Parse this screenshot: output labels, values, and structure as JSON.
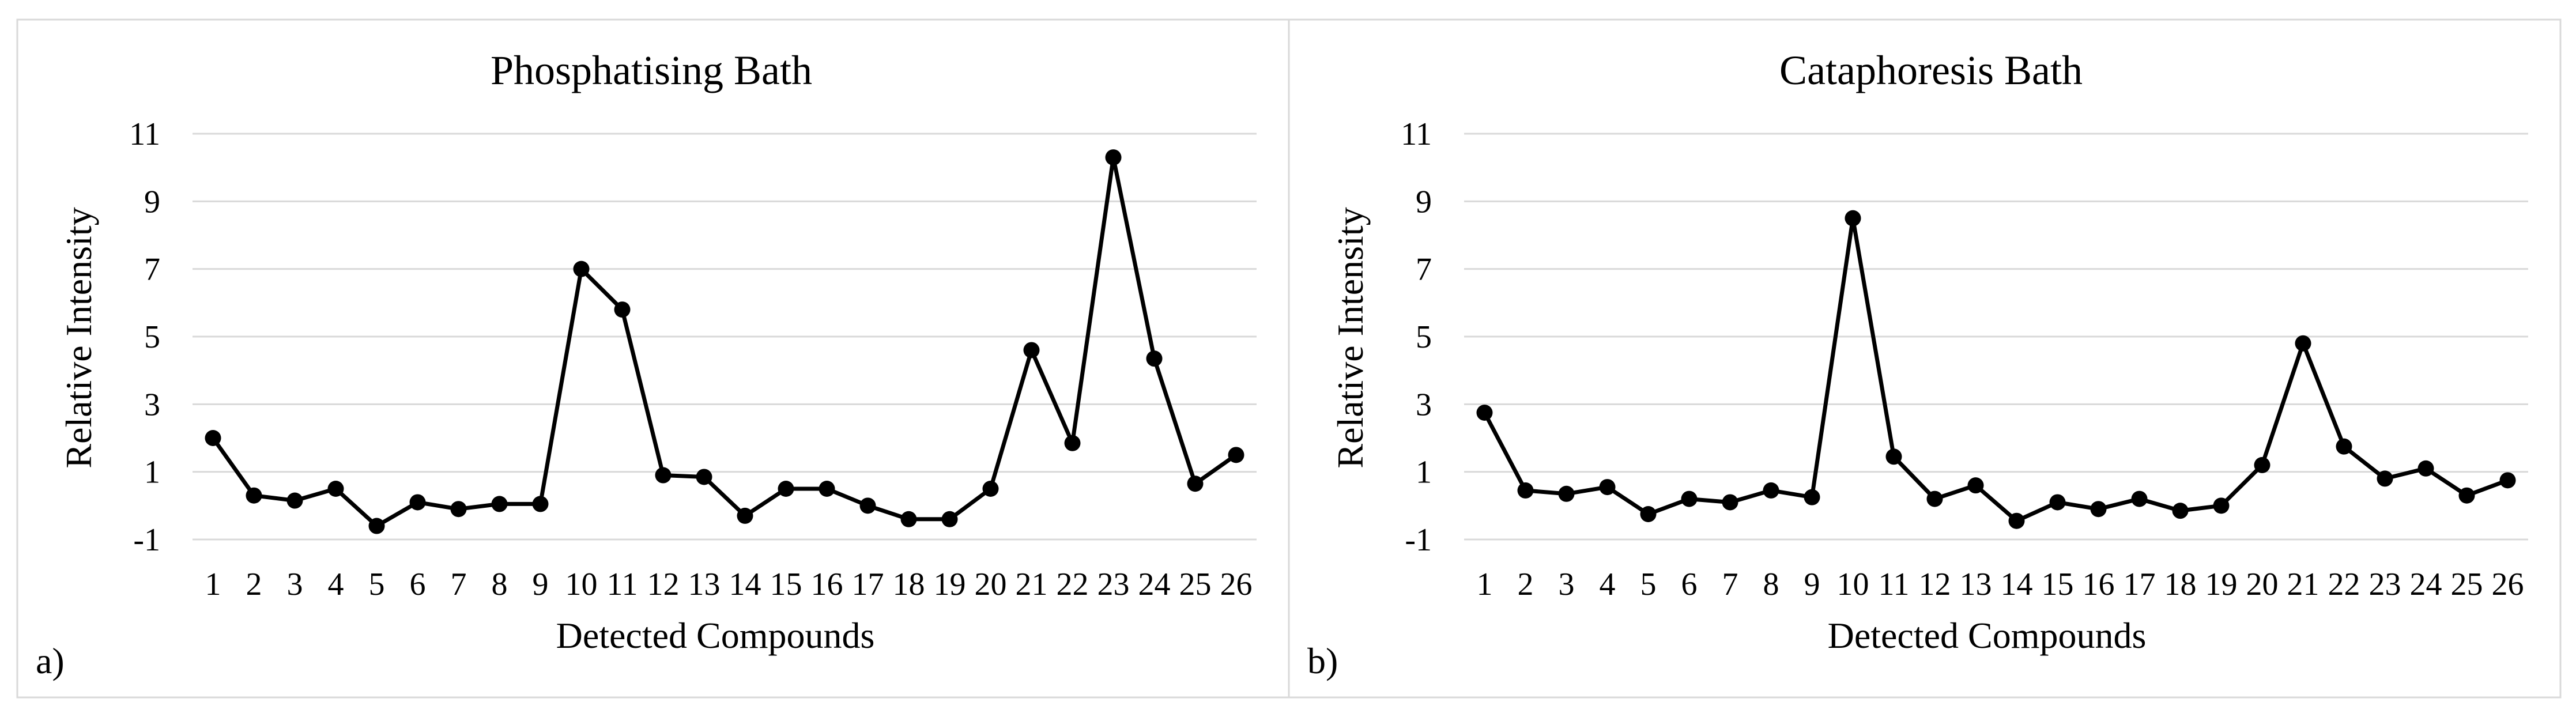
{
  "chart_data": [
    {
      "type": "line",
      "title": "Phosphatising Bath",
      "xlabel": "Detected Compounds",
      "ylabel": "Relative Intensity",
      "panel_label": "a)",
      "categories": [
        "1",
        "2",
        "3",
        "4",
        "5",
        "6",
        "7",
        "8",
        "9",
        "10",
        "11",
        "12",
        "13",
        "14",
        "15",
        "16",
        "17",
        "18",
        "19",
        "20",
        "21",
        "22",
        "23",
        "24",
        "25",
        "26"
      ],
      "values": [
        2.0,
        0.3,
        0.15,
        0.5,
        -0.6,
        0.1,
        -0.1,
        0.05,
        0.05,
        7.0,
        5.8,
        0.9,
        0.85,
        -0.3,
        0.5,
        0.5,
        0.0,
        -0.4,
        -0.4,
        0.5,
        4.6,
        1.85,
        10.3,
        4.35,
        0.65,
        1.5
      ],
      "ylim": [
        -1,
        11
      ],
      "yticks": [
        -1,
        1,
        3,
        5,
        7,
        9,
        11
      ],
      "grid": true,
      "legend": "none"
    },
    {
      "type": "line",
      "title": "Cataphoresis Bath",
      "xlabel": "Detected Compounds",
      "ylabel": "Relative Intensity",
      "panel_label": "b)",
      "categories": [
        "1",
        "2",
        "3",
        "4",
        "5",
        "6",
        "7",
        "8",
        "9",
        "10",
        "11",
        "12",
        "13",
        "14",
        "15",
        "16",
        "17",
        "18",
        "19",
        "20",
        "21",
        "22",
        "23",
        "24",
        "25",
        "26"
      ],
      "values": [
        2.75,
        0.45,
        0.35,
        0.55,
        -0.25,
        0.2,
        0.1,
        0.45,
        0.25,
        8.5,
        1.45,
        0.2,
        0.6,
        -0.45,
        0.1,
        -0.1,
        0.2,
        -0.15,
        0.0,
        1.2,
        4.8,
        1.75,
        0.8,
        1.1,
        0.3,
        0.75
      ],
      "ylim": [
        -1,
        11
      ],
      "yticks": [
        -1,
        1,
        3,
        5,
        7,
        9,
        11
      ],
      "grid": true,
      "legend": "none"
    }
  ]
}
